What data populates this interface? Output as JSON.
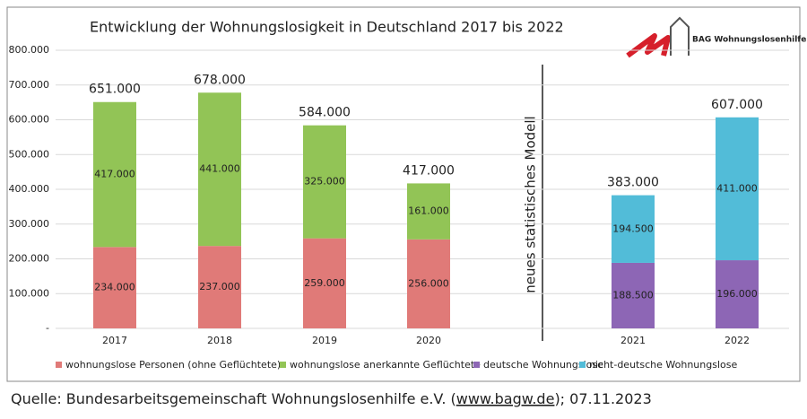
{
  "chart_data": {
    "type": "stacked_bar",
    "title": "Entwicklung der Wohnungslosigkeit in Deutschland 2017 bis 2022",
    "logo_text": "BAG Wohnungslosenhilfe e.V.",
    "annotation": "neues statistisches Modell",
    "categories": [
      "2017",
      "2018",
      "2019",
      "2020",
      "2021",
      "2022"
    ],
    "series": [
      {
        "name": "wohnungslose Personen (ohne Geflüchtete)",
        "color": "#e07a78",
        "values": [
          234000,
          237000,
          259000,
          256000,
          null,
          null
        ],
        "value_labels": [
          "234.000",
          "237.000",
          "259.000",
          "256.000",
          null,
          null
        ]
      },
      {
        "name": "wohnungslose anerkannte Geflüchtete",
        "color": "#92c456",
        "values": [
          417000,
          441000,
          325000,
          161000,
          null,
          null
        ],
        "value_labels": [
          "417.000",
          "441.000",
          "325.000",
          "161.000",
          null,
          null
        ]
      },
      {
        "name": "deutsche Wohnungslose",
        "color": "#8d66b5",
        "values": [
          null,
          null,
          null,
          null,
          188500,
          196000
        ],
        "value_labels": [
          null,
          null,
          null,
          null,
          "188.500",
          "196.000"
        ]
      },
      {
        "name": "nicht-deutsche Wohnungslose",
        "color": "#52bcd8",
        "values": [
          null,
          null,
          null,
          null,
          194500,
          411000
        ],
        "value_labels": [
          null,
          null,
          null,
          null,
          "194.500",
          "411.000"
        ]
      }
    ],
    "totals": {
      "values": [
        651000,
        678000,
        584000,
        417000,
        383000,
        607000
      ],
      "value_labels": [
        "651.000",
        "678.000",
        "584.000",
        "417.000",
        "383.000",
        "607.000"
      ]
    },
    "ylim": [
      0,
      800000
    ],
    "yticks": [
      {
        "value": 0,
        "label": "-"
      },
      {
        "value": 100000,
        "label": "100.000"
      },
      {
        "value": 200000,
        "label": "200.000"
      },
      {
        "value": 300000,
        "label": "300.000"
      },
      {
        "value": 400000,
        "label": "400.000"
      },
      {
        "value": 500000,
        "label": "500.000"
      },
      {
        "value": 600000,
        "label": "600.000"
      },
      {
        "value": 700000,
        "label": "700.000"
      },
      {
        "value": 800000,
        "label": "800.000"
      }
    ],
    "grid": true
  },
  "source": {
    "prefix": "Quelle: Bundesarbeitsgemeinschaft Wohnungslosenhilfe e.V. (",
    "link": "www.bagw.de",
    "suffix": "); 07.11.2023"
  }
}
